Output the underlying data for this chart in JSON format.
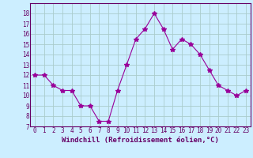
{
  "x": [
    0,
    1,
    2,
    3,
    4,
    5,
    6,
    7,
    8,
    9,
    10,
    11,
    12,
    13,
    14,
    15,
    16,
    17,
    18,
    19,
    20,
    21,
    22,
    23
  ],
  "y": [
    12,
    12,
    11,
    10.5,
    10.5,
    9,
    9,
    7.5,
    7.5,
    10.5,
    13,
    15.5,
    16.5,
    18,
    16.5,
    14.5,
    15.5,
    15,
    14,
    12.5,
    11,
    10.5,
    10,
    10.5
  ],
  "line_color": "#990099",
  "marker": "*",
  "marker_size": 4,
  "bg_color": "#cceeff",
  "grid_color": "#aacccc",
  "ylim": [
    7,
    19
  ],
  "xlim": [
    -0.5,
    23.5
  ],
  "yticks": [
    7,
    8,
    9,
    10,
    11,
    12,
    13,
    14,
    15,
    16,
    17,
    18
  ],
  "xticks": [
    0,
    1,
    2,
    3,
    4,
    5,
    6,
    7,
    8,
    9,
    10,
    11,
    12,
    13,
    14,
    15,
    16,
    17,
    18,
    19,
    20,
    21,
    22,
    23
  ],
  "tick_label_fontsize": 5.5,
  "xlabel": "Windchill (Refroidissement éolien,°C)",
  "xlabel_fontsize": 6.5,
  "tick_color": "#660066",
  "label_color": "#660066",
  "spine_color": "#660066"
}
